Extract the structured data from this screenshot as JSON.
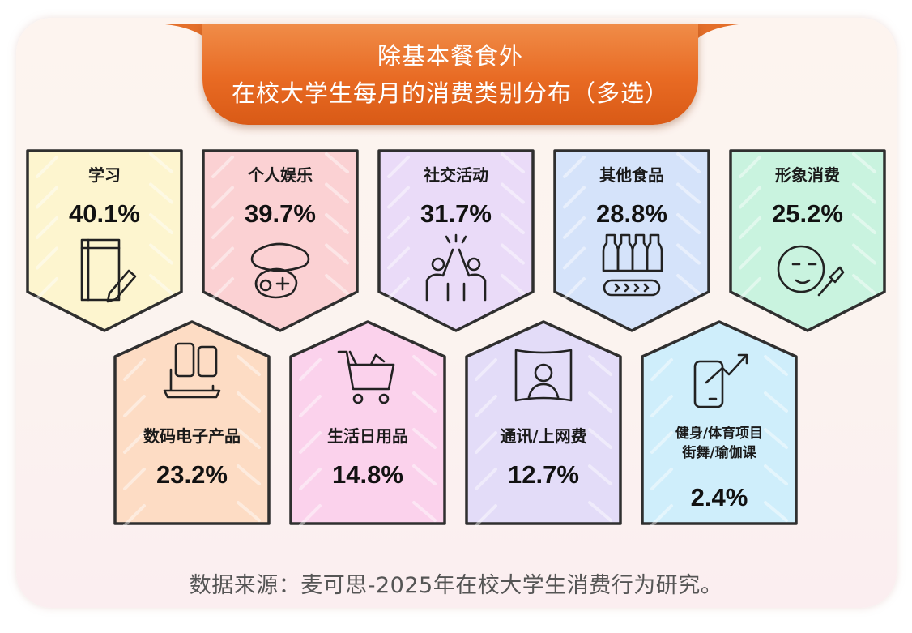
{
  "title": {
    "line1": "除基本餐食外",
    "line2": "在校大学生每月的消费类别分布（多选）"
  },
  "source": "数据来源：麦可思-2025年在校大学生消费行为研究。",
  "chart_data": {
    "type": "bar",
    "unit": "%",
    "categories": [
      {
        "label": [
          "学习"
        ],
        "value": 40.1,
        "display": "40.1%",
        "color": "#fdf5cf",
        "icon": "book-pencil-icon"
      },
      {
        "label": [
          "个人娱乐"
        ],
        "value": 39.7,
        "display": "39.7%",
        "color": "#fbd1d3",
        "icon": "gamepad-icon"
      },
      {
        "label": [
          "社交活动"
        ],
        "value": 31.7,
        "display": "31.7%",
        "color": "#eadbf8",
        "icon": "high-five-icon"
      },
      {
        "label": [
          "其他食品"
        ],
        "value": 28.8,
        "display": "28.8%",
        "color": "#d5e3fa",
        "icon": "bottles-food-icon"
      },
      {
        "label": [
          "形象消费"
        ],
        "value": 25.2,
        "display": "25.2%",
        "color": "#c9f3df",
        "icon": "face-makeup-icon"
      },
      {
        "label": [
          "数码电子产品"
        ],
        "value": 23.2,
        "display": "23.2%",
        "color": "#fddcc4",
        "icon": "devices-icon"
      },
      {
        "label": [
          "生活日用品"
        ],
        "value": 14.8,
        "display": "14.8%",
        "color": "#fbd2ec",
        "icon": "shopping-cart-icon"
      },
      {
        "label": [
          "通讯/上网费"
        ],
        "value": 12.7,
        "display": "12.7%",
        "color": "#e3dcf8",
        "icon": "video-call-icon"
      },
      {
        "label": [
          "健身/体育项目",
          "街舞/瑜伽课"
        ],
        "value": 2.4,
        "display": "2.4%",
        "color": "#cfeefb",
        "icon": "phone-trend-icon"
      }
    ]
  }
}
